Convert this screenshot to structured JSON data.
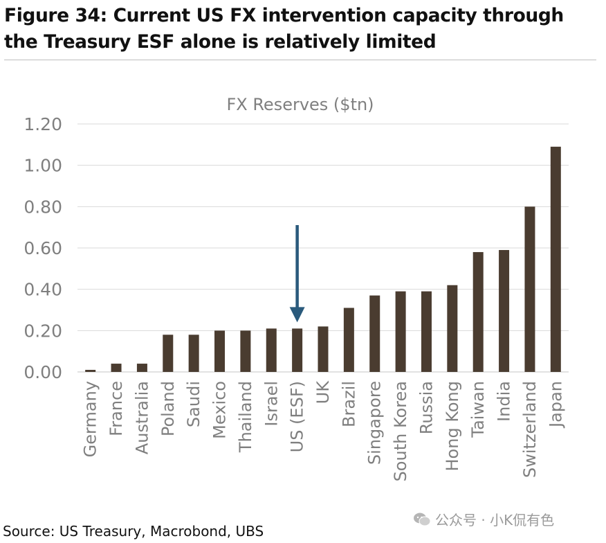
{
  "figure": {
    "title": "Figure 34: Current US FX intervention capacity through the Treasury ESF alone is relatively limited",
    "source": "Source: US Treasury, Macrobond, UBS",
    "watermark": "公众号 · 小K侃有色"
  },
  "colors": {
    "bar": "#4a3c30",
    "arrow": "#2a5a7c",
    "grid": "#d9d9d9",
    "axis_text": "#7f7f7f"
  },
  "chart_data": {
    "type": "bar",
    "title": "FX Reserves ($tn)",
    "xlabel": "",
    "ylabel": "",
    "ylim": [
      0,
      1.2
    ],
    "yticks": [
      "0.00",
      "0.20",
      "0.40",
      "0.60",
      "0.80",
      "1.00",
      "1.20"
    ],
    "grid": true,
    "legend": "none",
    "categories": [
      "Germany",
      "France",
      "Australia",
      "Poland",
      "Saudi",
      "Mexico",
      "Thailand",
      "Israel",
      "US (ESF)",
      "UK",
      "Brazil",
      "Singapore",
      "South Korea",
      "Russia",
      "Hong Kong",
      "Taiwan",
      "India",
      "Switzerland",
      "Japan"
    ],
    "values": [
      0.01,
      0.04,
      0.04,
      0.18,
      0.18,
      0.2,
      0.2,
      0.21,
      0.21,
      0.22,
      0.31,
      0.37,
      0.39,
      0.39,
      0.42,
      0.58,
      0.59,
      0.8,
      1.09
    ],
    "annotations": [
      {
        "type": "arrow",
        "target": "US (ESF)",
        "direction": "down"
      }
    ]
  }
}
